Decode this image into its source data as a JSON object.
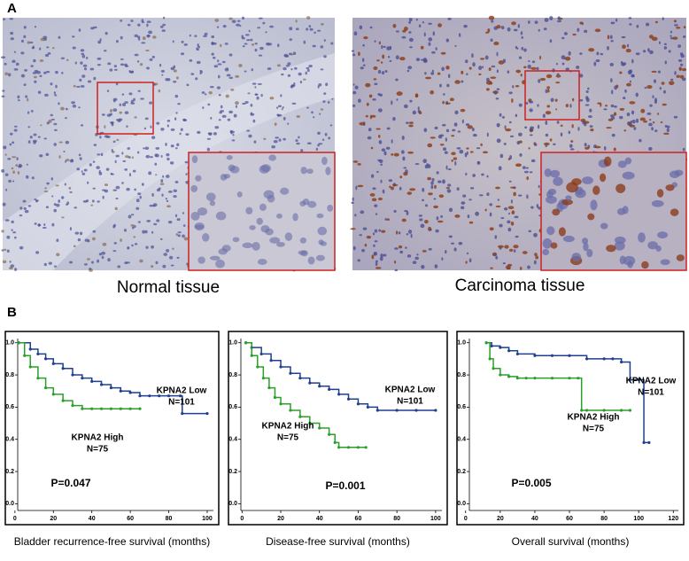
{
  "panel_a": {
    "label": "A",
    "images": [
      {
        "caption": "Normal tissue"
      },
      {
        "caption": "Carcinoma tissue"
      }
    ]
  },
  "panel_b": {
    "label": "B"
  },
  "chart_data": [
    {
      "type": "line",
      "xlabel": "Bladder recurrence-free survival (months)",
      "p_value": "P=0.047",
      "xlim": [
        -5,
        106
      ],
      "ylim": [
        -0.13,
        1.07
      ],
      "xticks": [
        0,
        20,
        40,
        60,
        80,
        100
      ],
      "yticks": [
        {
          "value": 0,
          "label": "0.0"
        },
        0.2,
        0.4,
        0.6,
        0.8,
        {
          "value": 1,
          "label": "1.0"
        }
      ],
      "series": [
        {
          "name": "KPNA2 Low",
          "n_label": "N=101",
          "color": "#1f3f8f",
          "x": [
            2,
            8,
            12,
            16,
            20,
            25,
            30,
            35,
            40,
            45,
            50,
            55,
            60,
            65,
            70,
            75,
            80,
            86,
            87,
            100
          ],
          "values": [
            1.0,
            0.96,
            0.93,
            0.9,
            0.87,
            0.84,
            0.8,
            0.78,
            0.76,
            0.74,
            0.72,
            0.7,
            0.69,
            0.67,
            0.67,
            0.67,
            0.67,
            0.67,
            0.56,
            0.56
          ]
        },
        {
          "name": "KPNA2 High",
          "n_label": "N=75",
          "color": "#2aa02a",
          "x": [
            2,
            5,
            8,
            12,
            16,
            20,
            25,
            30,
            35,
            40,
            45,
            50,
            55,
            60,
            65
          ],
          "values": [
            1.0,
            0.92,
            0.85,
            0.78,
            0.72,
            0.68,
            0.64,
            0.61,
            0.59,
            0.59,
            0.59,
            0.59,
            0.59,
            0.59,
            0.59
          ]
        }
      ]
    },
    {
      "type": "line",
      "xlabel": "Disease-free survival (months)",
      "p_value": "P=0.001",
      "xlim": [
        -7,
        106
      ],
      "ylim": [
        -0.13,
        1.07
      ],
      "xticks": [
        0,
        20,
        40,
        60,
        80,
        100
      ],
      "yticks": [
        {
          "value": 0,
          "label": "0.0"
        },
        0.2,
        0.4,
        0.6,
        0.8,
        {
          "value": 1,
          "label": "1.0"
        }
      ],
      "series": [
        {
          "name": "KPNA2 Low",
          "n_label": "N=101",
          "color": "#1f3f8f",
          "x": [
            2,
            5,
            10,
            15,
            20,
            25,
            30,
            35,
            40,
            45,
            50,
            55,
            60,
            65,
            70,
            80,
            90,
            100
          ],
          "values": [
            1.0,
            0.97,
            0.93,
            0.89,
            0.85,
            0.81,
            0.78,
            0.75,
            0.73,
            0.71,
            0.68,
            0.65,
            0.62,
            0.6,
            0.58,
            0.58,
            0.58,
            0.58
          ]
        },
        {
          "name": "KPNA2 High",
          "n_label": "N=75",
          "color": "#2aa02a",
          "x": [
            2,
            5,
            8,
            11,
            14,
            17,
            20,
            25,
            30,
            35,
            40,
            45,
            48,
            50,
            55,
            60,
            64
          ],
          "values": [
            1.0,
            0.92,
            0.85,
            0.78,
            0.72,
            0.66,
            0.62,
            0.58,
            0.54,
            0.5,
            0.47,
            0.43,
            0.38,
            0.35,
            0.35,
            0.35,
            0.35
          ]
        }
      ]
    },
    {
      "type": "line",
      "xlabel": "Overall survival (months)",
      "p_value": "P=0.005",
      "xlim": [
        -5,
        126
      ],
      "ylim": [
        -0.13,
        1.07
      ],
      "xticks": [
        0,
        20,
        40,
        60,
        80,
        100,
        120
      ],
      "yticks": [
        {
          "value": 0,
          "label": "0.0"
        },
        0.2,
        0.4,
        0.6,
        0.8,
        {
          "value": 1,
          "label": "1.0"
        }
      ],
      "series": [
        {
          "name": "KPNA2 Low",
          "n_label": "N=101",
          "color": "#1f3f8f",
          "x": [
            12,
            15,
            20,
            25,
            30,
            40,
            50,
            60,
            70,
            80,
            85,
            90,
            95,
            100,
            103,
            106
          ],
          "values": [
            1.0,
            0.98,
            0.97,
            0.95,
            0.93,
            0.92,
            0.92,
            0.92,
            0.9,
            0.9,
            0.9,
            0.88,
            0.77,
            0.77,
            0.38,
            0.38
          ]
        },
        {
          "name": "KPNA2 High",
          "n_label": "N=75",
          "color": "#2aa02a",
          "x": [
            12,
            14,
            16,
            20,
            25,
            30,
            35,
            40,
            50,
            60,
            65,
            67,
            70,
            80,
            90,
            95
          ],
          "values": [
            1.0,
            0.9,
            0.84,
            0.8,
            0.79,
            0.78,
            0.78,
            0.78,
            0.78,
            0.78,
            0.78,
            0.58,
            0.58,
            0.58,
            0.58,
            0.58
          ]
        }
      ]
    }
  ]
}
